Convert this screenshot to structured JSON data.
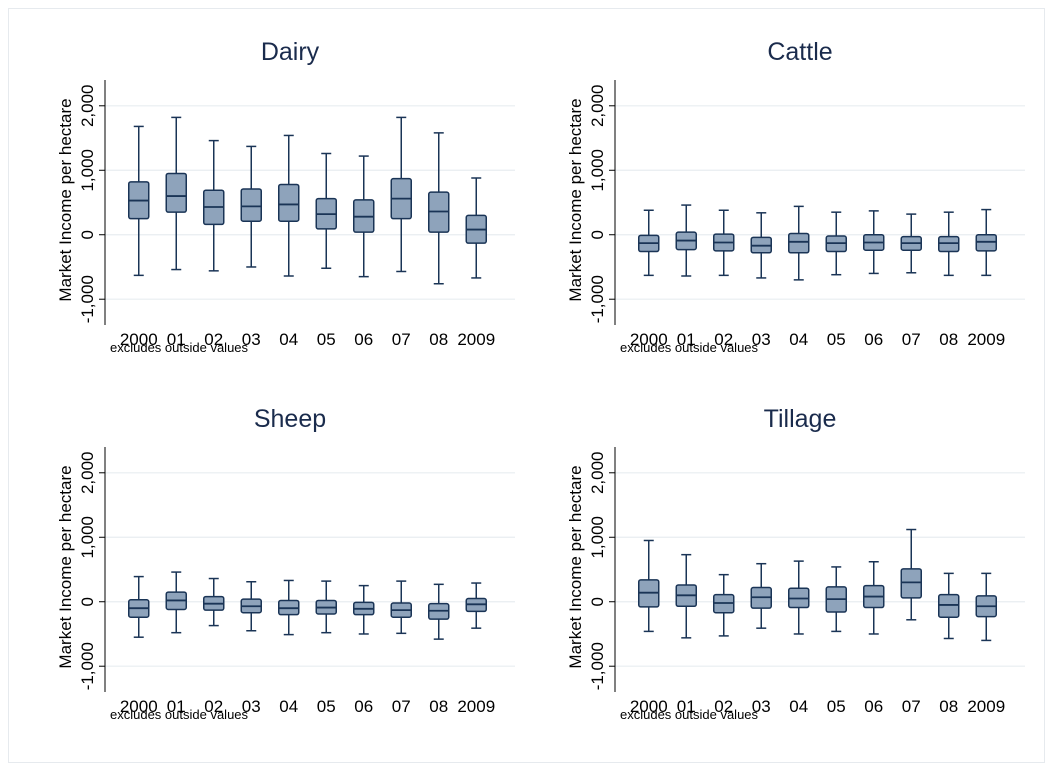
{
  "note": "excludes outside values",
  "ylabel": "Market  Income per hectare",
  "colors": {
    "box_fill": "#8ea3bb",
    "box_line": "#1a3456",
    "grid": "#e8edf1",
    "title": "#1a2b4c"
  },
  "chart_data": [
    {
      "type": "box",
      "title": "Dairy",
      "ylabel": "Market  Income per hectare",
      "categories": [
        "2000",
        "01",
        "02",
        "03",
        "04",
        "05",
        "06",
        "07",
        "08",
        "2009"
      ],
      "yticks": [
        "-1,000",
        "0",
        "1,000",
        "2,000"
      ],
      "yticks_values": [
        -1000,
        0,
        1000,
        2000
      ],
      "ylim": [
        -1400,
        2400
      ],
      "grid": true,
      "boxes": [
        {
          "whisker_low": -630,
          "q1": 250,
          "median": 530,
          "q3": 820,
          "whisker_high": 1680
        },
        {
          "whisker_low": -540,
          "q1": 350,
          "median": 600,
          "q3": 950,
          "whisker_high": 1820
        },
        {
          "whisker_low": -560,
          "q1": 160,
          "median": 430,
          "q3": 690,
          "whisker_high": 1460
        },
        {
          "whisker_low": -500,
          "q1": 210,
          "median": 440,
          "q3": 710,
          "whisker_high": 1370
        },
        {
          "whisker_low": -640,
          "q1": 210,
          "median": 470,
          "q3": 780,
          "whisker_high": 1540
        },
        {
          "whisker_low": -520,
          "q1": 90,
          "median": 320,
          "q3": 560,
          "whisker_high": 1260
        },
        {
          "whisker_low": -650,
          "q1": 40,
          "median": 280,
          "q3": 540,
          "whisker_high": 1220
        },
        {
          "whisker_low": -570,
          "q1": 250,
          "median": 560,
          "q3": 870,
          "whisker_high": 1820
        },
        {
          "whisker_low": -760,
          "q1": 40,
          "median": 360,
          "q3": 660,
          "whisker_high": 1580
        },
        {
          "whisker_low": -670,
          "q1": -130,
          "median": 80,
          "q3": 300,
          "whisker_high": 880
        }
      ]
    },
    {
      "type": "box",
      "title": "Cattle",
      "ylabel": "Market  Income per hectare",
      "categories": [
        "2000",
        "01",
        "02",
        "03",
        "04",
        "05",
        "06",
        "07",
        "08",
        "2009"
      ],
      "yticks": [
        "-1,000",
        "0",
        "1,000",
        "2,000"
      ],
      "yticks_values": [
        -1000,
        0,
        1000,
        2000
      ],
      "ylim": [
        -1400,
        2400
      ],
      "grid": true,
      "boxes": [
        {
          "whisker_low": -630,
          "q1": -260,
          "median": -130,
          "q3": -10,
          "whisker_high": 380
        },
        {
          "whisker_low": -640,
          "q1": -230,
          "median": -90,
          "q3": 40,
          "whisker_high": 460
        },
        {
          "whisker_low": -630,
          "q1": -250,
          "median": -120,
          "q3": 10,
          "whisker_high": 380
        },
        {
          "whisker_low": -670,
          "q1": -280,
          "median": -170,
          "q3": -40,
          "whisker_high": 340
        },
        {
          "whisker_low": -700,
          "q1": -280,
          "median": -110,
          "q3": 20,
          "whisker_high": 440
        },
        {
          "whisker_low": -620,
          "q1": -260,
          "median": -130,
          "q3": -20,
          "whisker_high": 350
        },
        {
          "whisker_low": -600,
          "q1": -240,
          "median": -120,
          "q3": 0,
          "whisker_high": 370
        },
        {
          "whisker_low": -590,
          "q1": -240,
          "median": -130,
          "q3": -30,
          "whisker_high": 320
        },
        {
          "whisker_low": -630,
          "q1": -260,
          "median": -130,
          "q3": -30,
          "whisker_high": 350
        },
        {
          "whisker_low": -630,
          "q1": -250,
          "median": -110,
          "q3": 0,
          "whisker_high": 390
        }
      ]
    },
    {
      "type": "box",
      "title": "Sheep",
      "ylabel": "Market  Income per hectare",
      "categories": [
        "2000",
        "01",
        "02",
        "03",
        "04",
        "05",
        "06",
        "07",
        "08",
        "2009"
      ],
      "yticks": [
        "-1,000",
        "0",
        "1,000",
        "2,000"
      ],
      "yticks_values": [
        -1000,
        0,
        1000,
        2000
      ],
      "ylim": [
        -1400,
        2400
      ],
      "grid": true,
      "boxes": [
        {
          "whisker_low": -550,
          "q1": -240,
          "median": -100,
          "q3": 30,
          "whisker_high": 390
        },
        {
          "whisker_low": -480,
          "q1": -120,
          "median": 20,
          "q3": 150,
          "whisker_high": 460
        },
        {
          "whisker_low": -370,
          "q1": -130,
          "median": -30,
          "q3": 80,
          "whisker_high": 360
        },
        {
          "whisker_low": -450,
          "q1": -170,
          "median": -70,
          "q3": 40,
          "whisker_high": 310
        },
        {
          "whisker_low": -510,
          "q1": -200,
          "median": -100,
          "q3": 20,
          "whisker_high": 330
        },
        {
          "whisker_low": -480,
          "q1": -190,
          "median": -90,
          "q3": 20,
          "whisker_high": 320
        },
        {
          "whisker_low": -500,
          "q1": -200,
          "median": -110,
          "q3": -10,
          "whisker_high": 250
        },
        {
          "whisker_low": -490,
          "q1": -240,
          "median": -130,
          "q3": -20,
          "whisker_high": 320
        },
        {
          "whisker_low": -580,
          "q1": -270,
          "median": -140,
          "q3": -30,
          "whisker_high": 270
        },
        {
          "whisker_low": -410,
          "q1": -150,
          "median": -40,
          "q3": 50,
          "whisker_high": 290
        }
      ]
    },
    {
      "type": "box",
      "title": "Tillage",
      "ylabel": "Market  Income per hectare",
      "categories": [
        "2000",
        "01",
        "02",
        "03",
        "04",
        "05",
        "06",
        "07",
        "08",
        "2009"
      ],
      "yticks": [
        "-1,000",
        "0",
        "1,000",
        "2,000"
      ],
      "yticks_values": [
        -1000,
        0,
        1000,
        2000
      ],
      "ylim": [
        -1400,
        2400
      ],
      "grid": true,
      "boxes": [
        {
          "whisker_low": -460,
          "q1": -80,
          "median": 140,
          "q3": 340,
          "whisker_high": 950
        },
        {
          "whisker_low": -560,
          "q1": -70,
          "median": 100,
          "q3": 260,
          "whisker_high": 730
        },
        {
          "whisker_low": -530,
          "q1": -170,
          "median": -20,
          "q3": 110,
          "whisker_high": 420
        },
        {
          "whisker_low": -410,
          "q1": -100,
          "median": 70,
          "q3": 220,
          "whisker_high": 590
        },
        {
          "whisker_low": -500,
          "q1": -90,
          "median": 50,
          "q3": 210,
          "whisker_high": 630
        },
        {
          "whisker_low": -460,
          "q1": -160,
          "median": 40,
          "q3": 230,
          "whisker_high": 540
        },
        {
          "whisker_low": -500,
          "q1": -90,
          "median": 80,
          "q3": 250,
          "whisker_high": 620
        },
        {
          "whisker_low": -280,
          "q1": 60,
          "median": 300,
          "q3": 510,
          "whisker_high": 1120
        },
        {
          "whisker_low": -570,
          "q1": -240,
          "median": -50,
          "q3": 110,
          "whisker_high": 440
        },
        {
          "whisker_low": -600,
          "q1": -230,
          "median": -70,
          "q3": 90,
          "whisker_high": 440
        }
      ]
    }
  ]
}
